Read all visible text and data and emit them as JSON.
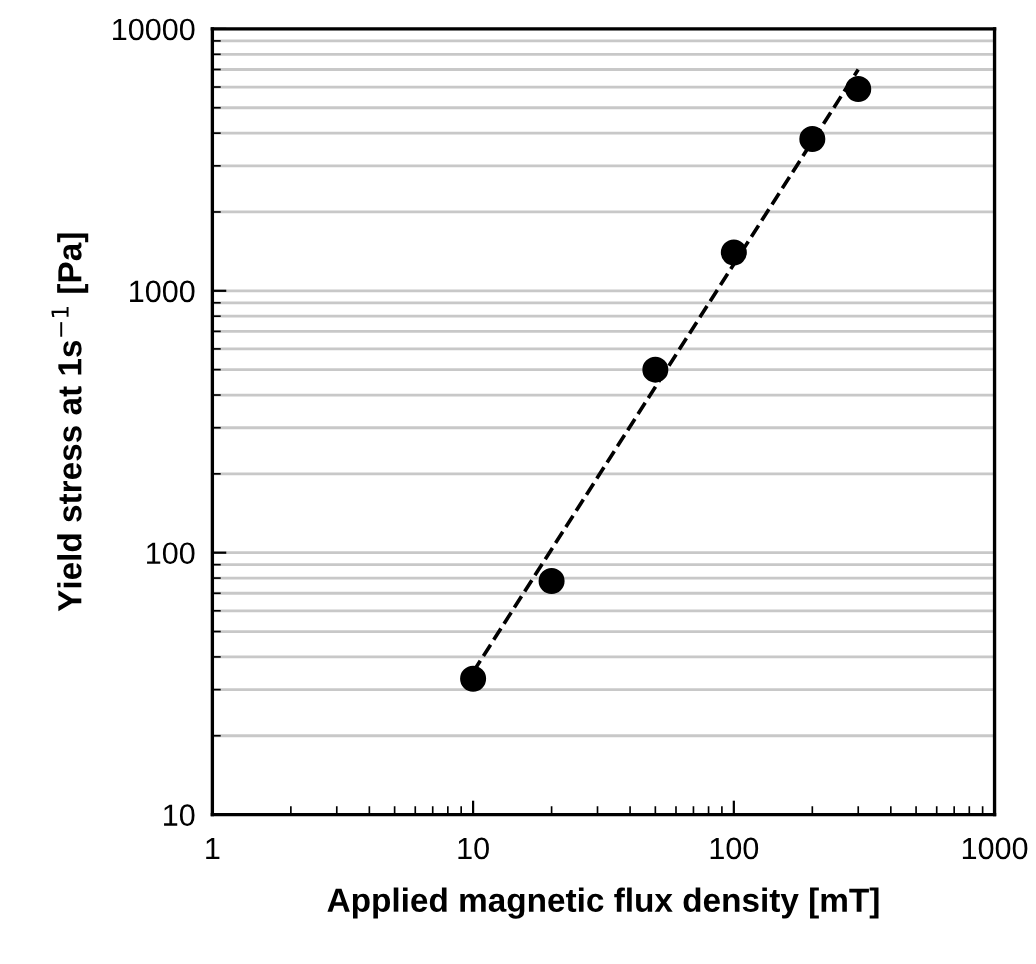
{
  "chart_data": {
    "type": "scatter",
    "xlabel": "Applied magnetic flux density [mT]",
    "ylabel": "Yield stress at 1s$^{−1}$ [Pa]",
    "log": "xy",
    "xlim": [
      1,
      1000
    ],
    "ylim": [
      10,
      10000
    ],
    "xticks": [
      1,
      10,
      100,
      1000
    ],
    "yticks": [
      10,
      100,
      1000,
      10000
    ],
    "grid": "y",
    "legend": false,
    "series": [
      {
        "color": "#000000",
        "marker": "circle",
        "x": [
          10,
          20,
          50,
          100,
          200,
          300
        ],
        "values": [
          33,
          78,
          500,
          1400,
          3800,
          5900
        ]
      },
      {
        "type": "line",
        "color": "#000000",
        "line_style": "dashed",
        "marker": "none",
        "x": [
          10,
          300
        ],
        "values": [
          35,
          7000
        ]
      }
    ]
  }
}
